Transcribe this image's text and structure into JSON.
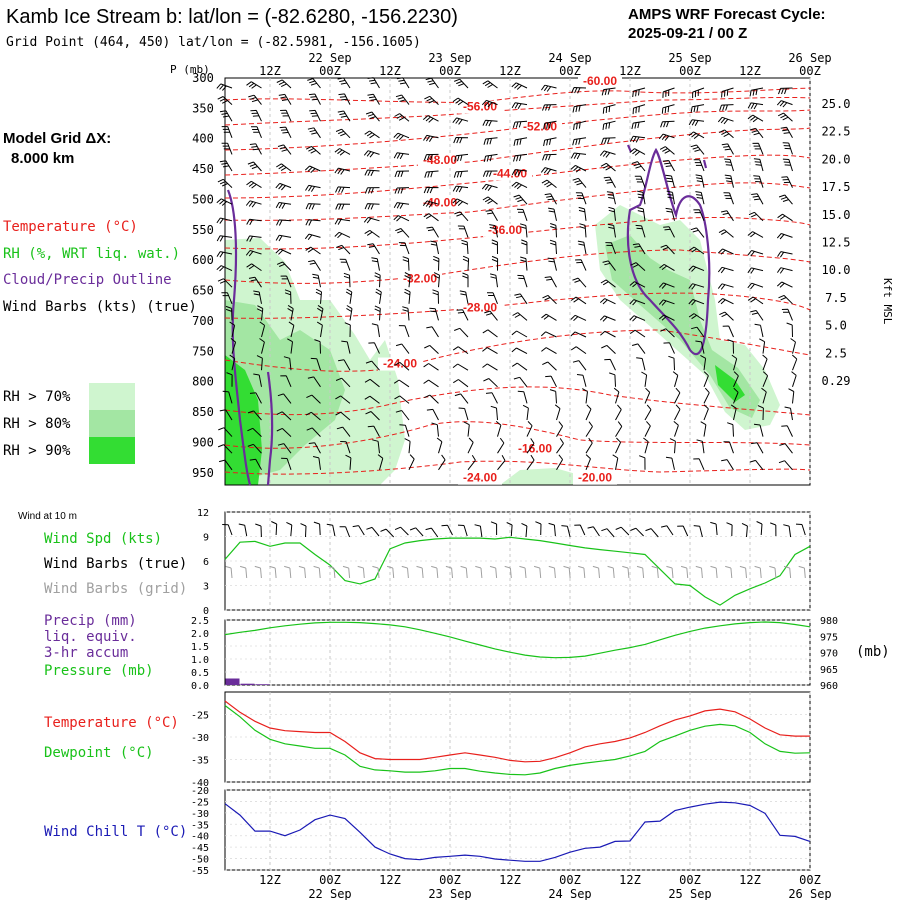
{
  "header": {
    "title": "Kamb Ice Stream b:  lat/lon = (-82.6280, -156.2230)",
    "grid_point": "Grid Point (464, 450) lat/lon = (-82.5981, -156.1605)",
    "cycle_line1": "AMPS WRF Forecast Cycle:",
    "cycle_line2": "2025-09-21 / 00  Z"
  },
  "legend": {
    "model_grid_line1": "Model Grid ΔX:",
    "model_grid_line2": "8.000 km",
    "temperature": "Temperature (°C)",
    "rh": "RH (%, WRT liq. wat.)",
    "cloud": "Cloud/Precip Outline",
    "wind": "Wind Barbs (kts) (true)",
    "rh70": "RH > 70%",
    "rh80": "RH > 80%",
    "rh90": "RH > 90%",
    "wind_at_10m": "Wind at 10 m",
    "wind_spd": "Wind Spd (kts)",
    "wind_barbs_true": "Wind Barbs (true)",
    "wind_barbs_grid": "Wind Barbs (grid)",
    "precip1": "Precip (mm)",
    "precip2": "liq. equiv.",
    "precip3": "3-hr accum",
    "pressure": "Pressure (mb)",
    "mb_unit": "(mb)",
    "temp2": "Temperature (°C)",
    "dewpoint": "Dewpoint (°C)",
    "windchill": "Wind Chill T (°C)",
    "kft_msl": "Kft MSL",
    "p_mb": "P (mb)"
  },
  "colors": {
    "temp": "#e8201c",
    "rh": "#19c219",
    "cloud": "#6a2d9a",
    "windchill": "#1a1ab5",
    "rh70": "#cff5cf",
    "rh80": "#a3e6a3",
    "rh90": "#33dd33",
    "grid_wind": "#a0a0a0"
  },
  "chart_data": [
    {
      "type": "heatmap",
      "name": "cross-section",
      "x_axis": {
        "hours": [
          12,
          24,
          36,
          48,
          60,
          72,
          84,
          96,
          108,
          120
        ],
        "tick_labels": [
          "12Z",
          "00Z",
          "12Z",
          "00Z",
          "12Z",
          "00Z",
          "12Z",
          "00Z",
          "12Z",
          "00Z"
        ],
        "top_date_labels": [
          {
            "hour": 24,
            "text": "22 Sep"
          },
          {
            "hour": 48,
            "text": "23 Sep"
          },
          {
            "hour": 72,
            "text": "24 Sep"
          },
          {
            "hour": 96,
            "text": "25 Sep"
          },
          {
            "hour": 120,
            "text": "26 Sep"
          }
        ],
        "range_hours": [
          3,
          120
        ]
      },
      "pressure_levels": [
        300,
        350,
        400,
        450,
        500,
        550,
        600,
        650,
        700,
        750,
        800,
        850,
        900,
        950
      ],
      "height_labels": [
        "25.0",
        "22.5",
        "20.0",
        "17.5",
        "15.0",
        "12.5",
        "10.0",
        "7.5",
        "5.0",
        "2.5",
        "0.29"
      ],
      "temperature_labels": [
        {
          "value": "-60.00",
          "hour": 78,
          "p": 310
        },
        {
          "value": "-56.00",
          "hour": 54,
          "p": 352
        },
        {
          "value": "-52.00",
          "hour": 66,
          "p": 385
        },
        {
          "value": "-48.00",
          "hour": 46,
          "p": 440
        },
        {
          "value": "-44.00",
          "hour": 60,
          "p": 462
        },
        {
          "value": "-40.00",
          "hour": 46,
          "p": 510
        },
        {
          "value": "-36.00",
          "hour": 59,
          "p": 555
        },
        {
          "value": "-32.00",
          "hour": 42,
          "p": 635
        },
        {
          "value": "-28.00",
          "hour": 54,
          "p": 683
        },
        {
          "value": "-24.00",
          "hour": 38,
          "p": 775
        },
        {
          "value": "-16.00",
          "hour": 65,
          "p": 915
        },
        {
          "value": "-24.00",
          "hour": 54,
          "p": 963
        },
        {
          "value": "-20.00",
          "hour": 77,
          "p": 963
        }
      ]
    },
    {
      "type": "line",
      "name": "wind-speed",
      "ylim": [
        0,
        12
      ],
      "yticks": [
        "12",
        "9",
        "6",
        "3",
        "0"
      ],
      "x": [
        3,
        6,
        9,
        12,
        15,
        18,
        21,
        24,
        27,
        30,
        33,
        36,
        39,
        42,
        45,
        48,
        51,
        54,
        57,
        60,
        63,
        66,
        69,
        72,
        75,
        78,
        81,
        84,
        87,
        90,
        93,
        96,
        99,
        102,
        105,
        108,
        111,
        114,
        117,
        120
      ],
      "series": [
        {
          "name": "Wind Spd (kts)",
          "values": [
            6.2,
            8.3,
            8.4,
            7.8,
            8.2,
            8.2,
            6.8,
            5.5,
            3.6,
            3.2,
            3.8,
            7.5,
            8.2,
            8.5,
            8.7,
            8.8,
            8.8,
            8.8,
            8.7,
            8.9,
            8.7,
            8.5,
            8.2,
            7.9,
            7.6,
            7.4,
            7.2,
            7.0,
            6.8,
            5.0,
            3.2,
            3.0,
            1.6,
            0.6,
            1.8,
            2.6,
            3.3,
            4.2,
            6.8,
            7.8
          ]
        }
      ]
    },
    {
      "type": "line",
      "name": "precip-pressure",
      "ylim_precip": [
        0,
        2.5
      ],
      "yticks_precip": [
        "2.5",
        "2.0",
        "1.5",
        "1.0",
        "0.5",
        "0.0"
      ],
      "ylim_pressure": [
        960,
        980
      ],
      "yticks_pressure": [
        "980",
        "975",
        "970",
        "965",
        "960"
      ],
      "precip_bars": [
        {
          "hour": 4.5,
          "value": 0.25
        },
        {
          "hour": 7.5,
          "value": 0.05
        },
        {
          "hour": 10.5,
          "value": 0.03
        }
      ],
      "x": [
        3,
        6,
        9,
        12,
        15,
        18,
        21,
        24,
        27,
        30,
        33,
        36,
        39,
        42,
        45,
        48,
        51,
        54,
        57,
        60,
        63,
        66,
        69,
        72,
        75,
        78,
        81,
        84,
        87,
        90,
        93,
        96,
        99,
        102,
        105,
        108,
        111,
        114,
        117,
        120
      ],
      "series": [
        {
          "name": "Pressure (mb)",
          "values": [
            975.5,
            976.2,
            976.8,
            977.6,
            978.2,
            978.7,
            979.1,
            979.3,
            979.3,
            979.2,
            978.9,
            978.5,
            977.9,
            977.0,
            975.9,
            974.8,
            973.5,
            972.3,
            971.1,
            970.1,
            969.2,
            968.6,
            968.4,
            968.5,
            968.9,
            969.8,
            970.7,
            971.5,
            972.5,
            973.9,
            975.3,
            976.5,
            977.5,
            978.2,
            978.8,
            979.2,
            979.4,
            979.2,
            978.6,
            977.9
          ]
        }
      ]
    },
    {
      "type": "line",
      "name": "temperature-dewpoint",
      "ylim": [
        -40,
        -20
      ],
      "yticks": [
        "-25",
        "-30",
        "-35",
        "-40"
      ],
      "x": [
        3,
        6,
        9,
        12,
        15,
        18,
        21,
        24,
        27,
        30,
        33,
        36,
        39,
        42,
        45,
        48,
        51,
        54,
        57,
        60,
        63,
        66,
        69,
        72,
        75,
        78,
        81,
        84,
        87,
        90,
        93,
        96,
        99,
        102,
        105,
        108,
        111,
        114,
        117,
        120
      ],
      "series": [
        {
          "name": "Temperature",
          "values": [
            -22.0,
            -24.5,
            -26.5,
            -28.0,
            -28.6,
            -28.8,
            -29.0,
            -29.0,
            -31.0,
            -33.5,
            -34.8,
            -35.0,
            -35.0,
            -35.0,
            -34.5,
            -34.0,
            -33.5,
            -34.0,
            -34.5,
            -35.2,
            -35.5,
            -35.4,
            -34.6,
            -33.5,
            -32.2,
            -31.5,
            -31.0,
            -30.2,
            -29.0,
            -27.5,
            -26.2,
            -25.3,
            -24.2,
            -23.8,
            -24.4,
            -26.0,
            -28.0,
            -29.5,
            -29.8,
            -29.8
          ]
        },
        {
          "name": "Dewpoint",
          "values": [
            -23.0,
            -25.5,
            -28.5,
            -30.5,
            -31.5,
            -32.0,
            -32.5,
            -32.5,
            -34.0,
            -36.5,
            -37.3,
            -37.5,
            -37.8,
            -37.8,
            -37.5,
            -37.0,
            -37.0,
            -37.6,
            -38.0,
            -38.3,
            -38.4,
            -38.0,
            -37.0,
            -36.3,
            -35.8,
            -35.4,
            -35.0,
            -34.2,
            -33.2,
            -31.0,
            -29.8,
            -28.5,
            -27.6,
            -27.2,
            -27.5,
            -29.0,
            -31.5,
            -33.2,
            -33.6,
            -33.5
          ]
        }
      ]
    },
    {
      "type": "line",
      "name": "wind-chill",
      "ylim": [
        -55,
        -20
      ],
      "yticks": [
        "-20",
        "-25",
        "-30",
        "-35",
        "-40",
        "-45",
        "-50",
        "-55"
      ],
      "x": [
        3,
        6,
        9,
        12,
        15,
        18,
        21,
        24,
        27,
        30,
        33,
        36,
        39,
        42,
        45,
        48,
        51,
        54,
        57,
        60,
        63,
        66,
        69,
        72,
        75,
        78,
        81,
        84,
        87,
        90,
        93,
        96,
        99,
        102,
        105,
        108,
        111,
        114,
        117,
        120
      ],
      "series": [
        {
          "name": "Wind Chill T",
          "values": [
            -26,
            -31,
            -38,
            -38,
            -40,
            -37.5,
            -33,
            -31,
            -32.5,
            -38.5,
            -45,
            -48,
            -50,
            -50.5,
            -49.5,
            -49,
            -48.5,
            -49,
            -50.2,
            -50.7,
            -51.2,
            -51.2,
            -49.5,
            -47.2,
            -45.5,
            -45,
            -42.5,
            -42.3,
            -34,
            -33.6,
            -29,
            -27.5,
            -26.2,
            -25.3,
            -25.6,
            -26.8,
            -30.2,
            -39.8,
            -40.3,
            -42.5
          ]
        }
      ]
    }
  ]
}
